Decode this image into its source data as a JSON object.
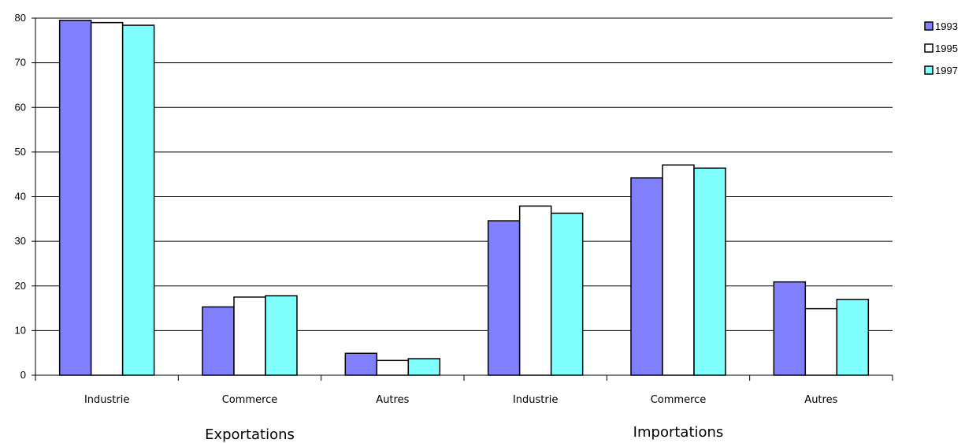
{
  "chart_data": {
    "type": "bar",
    "categories": [
      "Industrie",
      "Commerce",
      "Autres",
      "Industrie",
      "Commerce",
      "Autres"
    ],
    "groups": [
      {
        "label": "Exportations",
        "categories": [
          0,
          1,
          2
        ]
      },
      {
        "label": "Importations",
        "categories": [
          3,
          4,
          5
        ]
      }
    ],
    "series": [
      {
        "name": "1993",
        "color": "#8080ff",
        "values": [
          79.5,
          15.3,
          4.9,
          34.6,
          44.2,
          20.9
        ]
      },
      {
        "name": "1995",
        "color": "#ffffff",
        "values": [
          79.0,
          17.5,
          3.3,
          37.9,
          47.1,
          14.9
        ]
      },
      {
        "name": "1997",
        "color": "#80ffff",
        "values": [
          78.4,
          17.8,
          3.7,
          36.3,
          46.4,
          17.0
        ]
      }
    ],
    "ylim": [
      0,
      80
    ],
    "yticks": [
      "0",
      "10",
      "20",
      "30",
      "40",
      "50",
      "60",
      "70",
      "80"
    ],
    "grid": true,
    "legend_position": "top-right"
  }
}
